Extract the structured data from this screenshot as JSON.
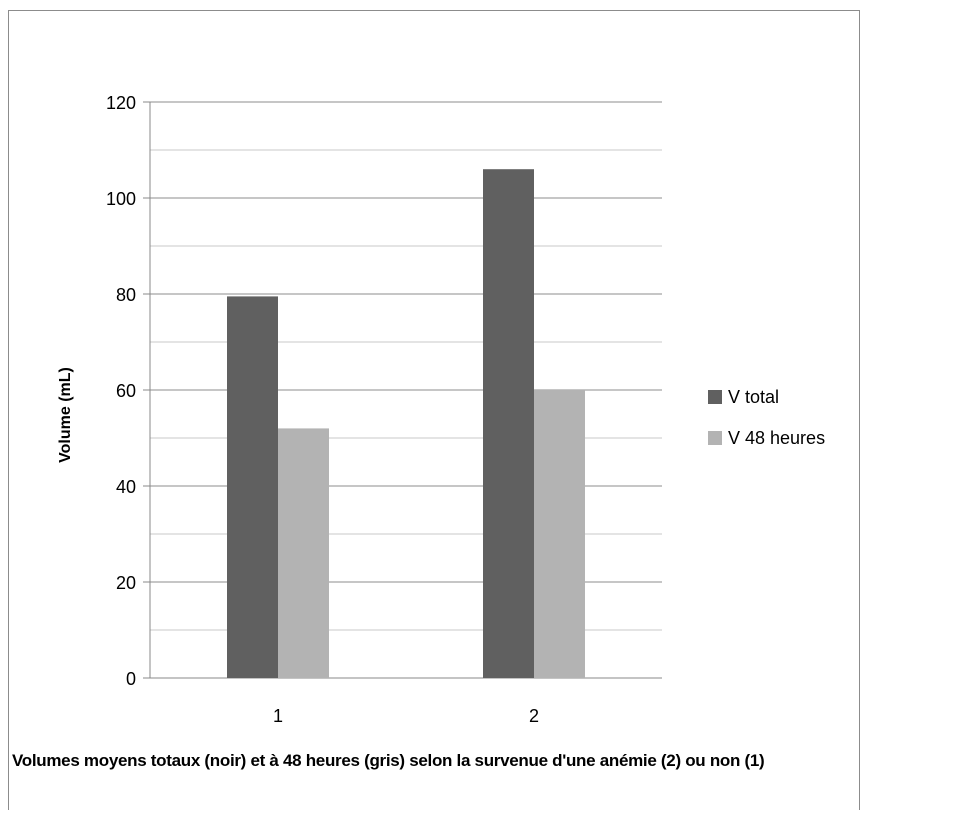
{
  "chart_data": {
    "type": "bar",
    "categories": [
      "1",
      "2"
    ],
    "series": [
      {
        "name": "V total",
        "values": [
          79.5,
          106
        ],
        "color": "#606060"
      },
      {
        "name": "V 48 heures",
        "values": [
          52,
          60
        ],
        "color": "#b3b3b3"
      }
    ],
    "title": "",
    "xlabel": "",
    "ylabel": "Volume (mL)",
    "ylim": [
      0,
      120
    ],
    "yticks": [
      0,
      20,
      40,
      60,
      80,
      100,
      120
    ],
    "grid": true,
    "legend": "right"
  },
  "caption": "Volumes moyens totaux (noir) et à 48 heures (gris) selon la survenue d'une anémie (2) ou non (1)"
}
